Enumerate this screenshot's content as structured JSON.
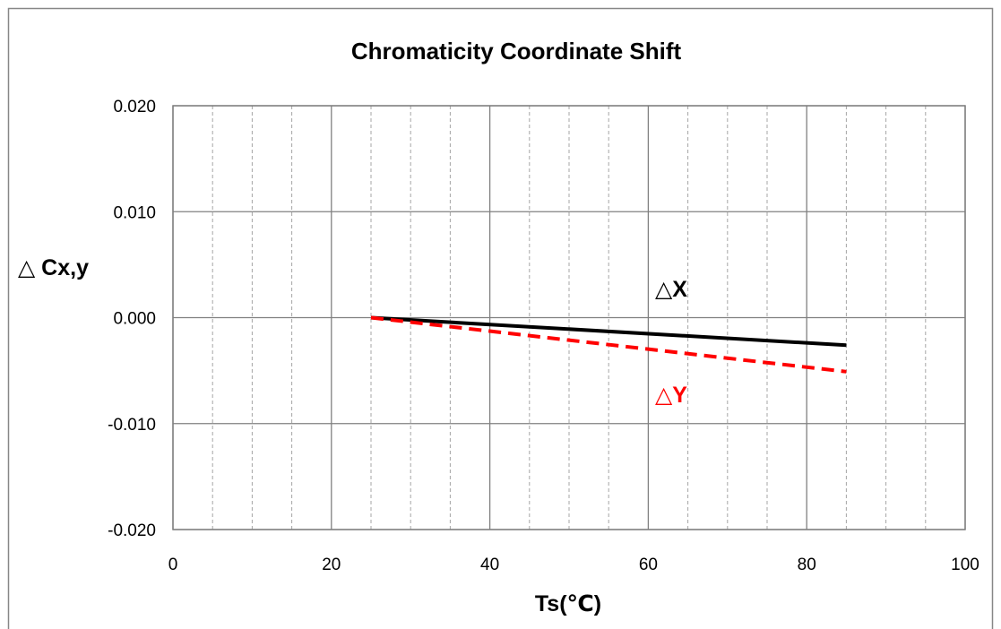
{
  "chart_data": {
    "type": "line",
    "title": "Chromaticity Coordinate Shift",
    "xlabel": "Ts(℃)",
    "ylabel": "△ Cx,y",
    "xlim": [
      0,
      100
    ],
    "ylim": [
      -0.02,
      0.02
    ],
    "x_ticks": [
      0,
      20,
      40,
      60,
      80,
      100
    ],
    "x_tick_labels": [
      "0",
      "20",
      "40",
      "60",
      "80",
      "100"
    ],
    "y_ticks": [
      0.02,
      0.01,
      0.0,
      -0.01,
      -0.02
    ],
    "y_tick_labels": [
      "0.020",
      "0.010",
      "0.000",
      "-0.010",
      "-0.020"
    ],
    "grid": true,
    "series": [
      {
        "name": "△X",
        "color": "#000000",
        "line_style": "solid",
        "x": [
          25,
          85
        ],
        "y": [
          0.0,
          -0.0026
        ]
      },
      {
        "name": "△Y",
        "color": "#ff0000",
        "line_style": "dashed",
        "x": [
          25,
          85
        ],
        "y": [
          0.0,
          -0.0051
        ]
      }
    ]
  }
}
